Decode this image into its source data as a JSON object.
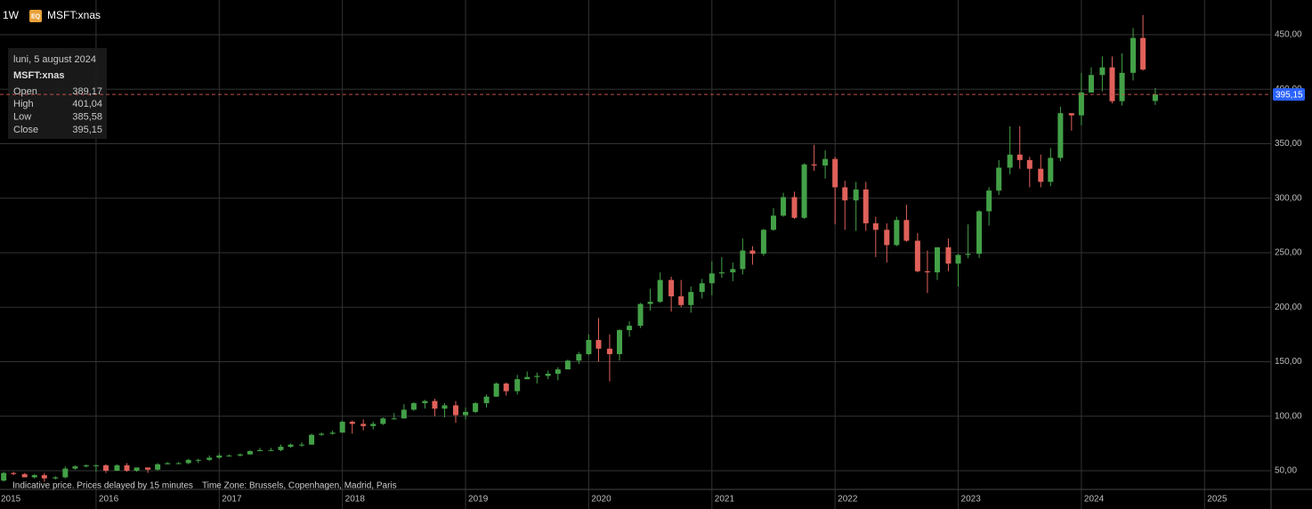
{
  "chart_data": {
    "type": "candlestick",
    "interval": "1W",
    "badge": "EQ",
    "symbol": "MSFT:xnas",
    "footer_note": "Indicative price. Prices delayed by 15 minutes",
    "footer_timezone": "Time Zone: Brussels, Copenhagen, Madrid, Paris",
    "tooltip": {
      "date": "luni, 5 august 2024",
      "symbol": "MSFT:xnas",
      "rows": [
        {
          "label": "Open",
          "value": "389,17"
        },
        {
          "label": "High",
          "value": "401,04"
        },
        {
          "label": "Low",
          "value": "385,58"
        },
        {
          "label": "Close",
          "value": "395,15"
        }
      ]
    },
    "last_price": {
      "value": 395.15,
      "label": "395,15"
    },
    "up_color": "#43a047",
    "down_color": "#e0605a",
    "xlim": [
      2015.22,
      2025.54
    ],
    "xticks": [
      2015,
      2016,
      2017,
      2018,
      2019,
      2020,
      2021,
      2022,
      2023,
      2024,
      2025
    ],
    "ylim": [
      32.9,
      481.8
    ],
    "yticks": [
      {
        "value": 50,
        "label": "50,00"
      },
      {
        "value": 100,
        "label": "100,00"
      },
      {
        "value": 150,
        "label": "150,00"
      },
      {
        "value": 200,
        "label": "200,00"
      },
      {
        "value": 250,
        "label": "250,00"
      },
      {
        "value": 300,
        "label": "300,00"
      },
      {
        "value": 350,
        "label": "350,00"
      },
      {
        "value": 400,
        "label": "400,00"
      },
      {
        "value": 450,
        "label": "450,00"
      }
    ],
    "grid": true,
    "x": [
      2015.25,
      2015.33,
      2015.42,
      2015.5,
      2015.58,
      2015.67,
      2015.75,
      2015.83,
      2015.92,
      2016,
      2016.08,
      2016.17,
      2016.25,
      2016.33,
      2016.42,
      2016.5,
      2016.58,
      2016.67,
      2016.75,
      2016.83,
      2016.92,
      2017,
      2017.08,
      2017.17,
      2017.25,
      2017.33,
      2017.42,
      2017.5,
      2017.58,
      2017.67,
      2017.75,
      2017.83,
      2017.92,
      2018,
      2018.08,
      2018.17,
      2018.25,
      2018.33,
      2018.42,
      2018.5,
      2018.58,
      2018.67,
      2018.75,
      2018.83,
      2018.92,
      2019,
      2019.08,
      2019.17,
      2019.25,
      2019.33,
      2019.42,
      2019.5,
      2019.58,
      2019.67,
      2019.75,
      2019.83,
      2019.92,
      2020,
      2020.08,
      2020.17,
      2020.25,
      2020.33,
      2020.42,
      2020.5,
      2020.58,
      2020.67,
      2020.75,
      2020.83,
      2020.92,
      2021,
      2021.08,
      2021.17,
      2021.25,
      2021.33,
      2021.42,
      2021.5,
      2021.58,
      2021.67,
      2021.75,
      2021.83,
      2021.92,
      2022,
      2022.08,
      2022.17,
      2022.25,
      2022.33,
      2022.42,
      2022.5,
      2022.58,
      2022.67,
      2022.75,
      2022.83,
      2022.92,
      2023,
      2023.08,
      2023.17,
      2023.25,
      2023.33,
      2023.42,
      2023.5,
      2023.58,
      2023.67,
      2023.75,
      2023.83,
      2023.92,
      2024,
      2024.08,
      2024.17,
      2024.25,
      2024.33,
      2024.42,
      2024.5,
      2024.6
    ],
    "open": [
      41,
      48,
      47,
      44,
      46,
      43,
      44,
      52,
      54,
      55,
      55,
      50,
      55,
      50,
      53,
      51,
      56,
      57,
      57,
      60,
      60,
      62,
      64,
      64,
      65,
      68,
      69,
      69,
      72,
      74,
      74,
      83,
      84,
      85,
      95,
      93,
      91,
      93,
      98,
      98,
      106,
      112,
      114,
      107,
      110,
      101,
      104,
      112,
      118,
      130,
      123,
      134,
      136,
      137,
      139,
      143,
      151,
      157,
      170,
      162,
      157,
      179,
      183,
      203,
      205,
      225,
      210,
      202,
      214,
      222,
      231,
      232,
      235,
      252,
      249,
      271,
      284,
      301,
      282,
      331,
      330,
      336,
      310,
      298,
      308,
      277,
      271,
      257,
      280,
      261,
      233,
      232,
      255,
      240,
      248,
      249,
      288,
      307,
      328,
      340,
      335,
      327,
      315,
      337,
      378,
      376,
      397,
      413,
      420,
      389,
      415,
      447,
      389.17
    ],
    "high": [
      49,
      49,
      48,
      47,
      48,
      45,
      54,
      55,
      56,
      56,
      56,
      56,
      57,
      53,
      53,
      57,
      58,
      58,
      61,
      61,
      64,
      66,
      65,
      66,
      69,
      71,
      71,
      74,
      75,
      76,
      84,
      85,
      87,
      96,
      96,
      97,
      95,
      99,
      103,
      111,
      113,
      115,
      116,
      112,
      114,
      108,
      113,
      120,
      131,
      131,
      138,
      141,
      140,
      142,
      145,
      152,
      159,
      175,
      190,
      175,
      180,
      187,
      204,
      217,
      232,
      228,
      225,
      219,
      226,
      242,
      246,
      241,
      263,
      256,
      272,
      291,
      305,
      306,
      332,
      349,
      344,
      338,
      316,
      315,
      315,
      283,
      277,
      283,
      294,
      268,
      252,
      255,
      263,
      249,
      276,
      289,
      310,
      335,
      366,
      366,
      338,
      340,
      346,
      384,
      378,
      415,
      420,
      430,
      430,
      433,
      456,
      468,
      401.04
    ],
    "low": [
      40,
      46,
      44,
      43,
      40,
      42,
      43,
      51,
      53,
      49,
      48,
      50,
      49,
      49,
      48,
      50,
      56,
      56,
      56,
      57,
      59,
      61,
      63,
      63,
      65,
      68,
      68,
      68,
      71,
      72,
      74,
      82,
      83,
      85,
      84,
      87,
      88,
      92,
      97,
      98,
      105,
      107,
      100,
      99,
      94,
      97,
      103,
      108,
      118,
      119,
      120,
      134,
      130,
      134,
      133,
      143,
      148,
      156,
      150,
      132,
      151,
      173,
      181,
      197,
      204,
      196,
      200,
      195,
      208,
      211,
      227,
      224,
      230,
      239,
      247,
      270,
      283,
      281,
      281,
      325,
      318,
      276,
      271,
      270,
      270,
      246,
      241,
      256,
      260,
      232,
      213,
      225,
      233,
      219,
      245,
      245,
      275,
      303,
      322,
      327,
      310,
      310,
      311,
      334,
      362,
      367,
      397,
      398,
      387,
      385,
      408,
      417,
      385.58
    ],
    "close": [
      48,
      47,
      44,
      46,
      43,
      44,
      52,
      54,
      55,
      55,
      50,
      55,
      50,
      53,
      51,
      56,
      57,
      57,
      60,
      60,
      62,
      64,
      64,
      65,
      68,
      69,
      69,
      72,
      74,
      74,
      83,
      84,
      85,
      95,
      93,
      91,
      93,
      98,
      98,
      106,
      112,
      114,
      107,
      110,
      101,
      104,
      112,
      118,
      130,
      123,
      134,
      136,
      137,
      139,
      143,
      151,
      157,
      170,
      162,
      157,
      179,
      183,
      203,
      205,
      225,
      210,
      202,
      214,
      222,
      231,
      232,
      235,
      252,
      249,
      271,
      284,
      301,
      282,
      331,
      330,
      336,
      310,
      298,
      308,
      277,
      271,
      257,
      280,
      261,
      233,
      232,
      255,
      240,
      248,
      249,
      288,
      307,
      328,
      340,
      335,
      327,
      315,
      337,
      378,
      376,
      397,
      413,
      420,
      389,
      415,
      447,
      418,
      395.15
    ]
  }
}
